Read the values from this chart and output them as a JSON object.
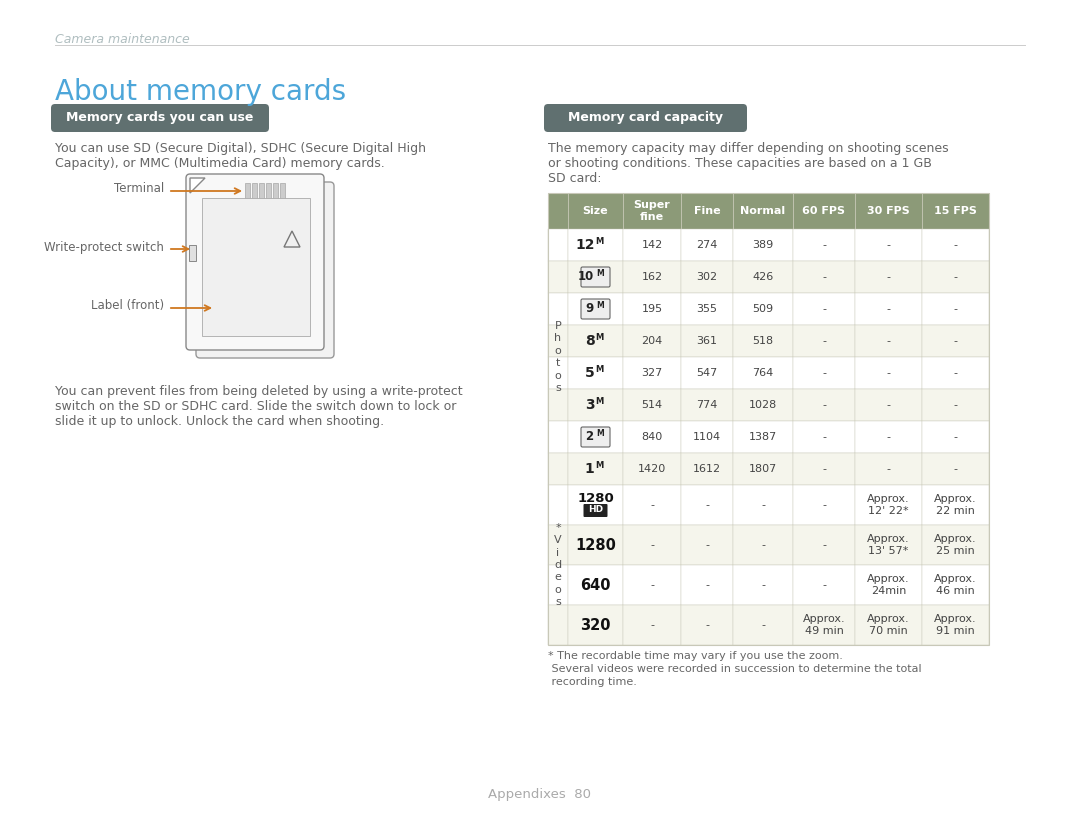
{
  "bg_color": "#ffffff",
  "page_title": "Camera maintenance",
  "section_title": "About memory cards",
  "section_title_color": "#4da6d9",
  "subsection1_title": "Memory cards you can use",
  "subsection1_bg": "#607070",
  "subsection1_text_color": "#ffffff",
  "body_text_color": "#666666",
  "body1_line1": "You can use SD (Secure Digital), SDHC (Secure Digital High",
  "body1_line2": "Capacity), or MMC (Multimedia Card) memory cards.",
  "card_labels": [
    "Terminal",
    "Write-protect switch",
    "Label (front)"
  ],
  "card_arrow_color": "#d07820",
  "body2_line1": "You can prevent files from being deleted by using a write-protect",
  "body2_line2": "switch on the SD or SDHC card. Slide the switch down to lock or",
  "body2_line3": "slide it up to unlock. Unlock the card when shooting.",
  "subsection2_title": "Memory card capacity",
  "subsection2_bg": "#607070",
  "subsection2_text_color": "#ffffff",
  "table_intro_line1": "The memory capacity may differ depending on shooting scenes",
  "table_intro_line2": "or shooting conditions. These capacities are based on a 1 GB",
  "table_intro_line3": "SD card:",
  "table_header_bg": "#8c9a78",
  "table_header_text": "#ffffff",
  "table_row_bg_odd": "#f5f5ec",
  "table_row_bg_even": "#ffffff",
  "table_border_color": "#c8c8b8",
  "col_headers": [
    "Size",
    "Super\nfine",
    "Fine",
    "Normal",
    "60 FPS",
    "30 FPS",
    "15 FPS"
  ],
  "rows": [
    {
      "label": "12M",
      "style": "bold_M",
      "sf": "142",
      "fine": "274",
      "normal": "389",
      "fps60": "-",
      "fps30": "-",
      "fps15": "-",
      "section": "Photos"
    },
    {
      "label": "10M",
      "style": "icon_box",
      "sf": "162",
      "fine": "302",
      "normal": "426",
      "fps60": "-",
      "fps30": "-",
      "fps15": "-",
      "section": "Photos"
    },
    {
      "label": "9M",
      "style": "icon_box",
      "sf": "195",
      "fine": "355",
      "normal": "509",
      "fps60": "-",
      "fps30": "-",
      "fps15": "-",
      "section": "Photos"
    },
    {
      "label": "8M",
      "style": "bold_M",
      "sf": "204",
      "fine": "361",
      "normal": "518",
      "fps60": "-",
      "fps30": "-",
      "fps15": "-",
      "section": "Photos"
    },
    {
      "label": "5M",
      "style": "bold_M",
      "sf": "327",
      "fine": "547",
      "normal": "764",
      "fps60": "-",
      "fps30": "-",
      "fps15": "-",
      "section": "Photos"
    },
    {
      "label": "3M",
      "style": "bold_M",
      "sf": "514",
      "fine": "774",
      "normal": "1028",
      "fps60": "-",
      "fps30": "-",
      "fps15": "-",
      "section": "Photos"
    },
    {
      "label": "2M",
      "style": "icon_box",
      "sf": "840",
      "fine": "1104",
      "normal": "1387",
      "fps60": "-",
      "fps30": "-",
      "fps15": "-",
      "section": "Photos"
    },
    {
      "label": "1M",
      "style": "bold_M",
      "sf": "1420",
      "fine": "1612",
      "normal": "1807",
      "fps60": "-",
      "fps30": "-",
      "fps15": "-",
      "section": "Photos"
    },
    {
      "label": "1280HD",
      "style": "hd_icon",
      "sf": "-",
      "fine": "-",
      "normal": "-",
      "fps60": "-",
      "fps30": "Approx.\n12' 22*",
      "fps15": "Approx.\n22 min",
      "section": "Videos"
    },
    {
      "label": "1280",
      "style": "bold_num",
      "sf": "-",
      "fine": "-",
      "normal": "-",
      "fps60": "-",
      "fps30": "Approx.\n13' 57*",
      "fps15": "Approx.\n25 min",
      "section": "Videos"
    },
    {
      "label": "640",
      "style": "bold_num",
      "sf": "-",
      "fine": "-",
      "normal": "-",
      "fps60": "-",
      "fps30": "Approx.\n24min",
      "fps15": "Approx.\n46 min",
      "section": "Videos"
    },
    {
      "label": "320",
      "style": "bold_num",
      "sf": "-",
      "fine": "-",
      "normal": "-",
      "fps60": "Approx.\n49 min",
      "fps30": "Approx.\n70 min",
      "fps15": "Approx.\n91 min",
      "section": "Videos"
    }
  ],
  "footnote1": "* The recordable time may vary if you use the zoom.",
  "footnote2": " Several videos were recorded in succession to determine the total",
  "footnote3": " recording time.",
  "footer_text": "Appendixes  80",
  "footer_color": "#aaaaaa",
  "header_divider_color": "#cccccc"
}
